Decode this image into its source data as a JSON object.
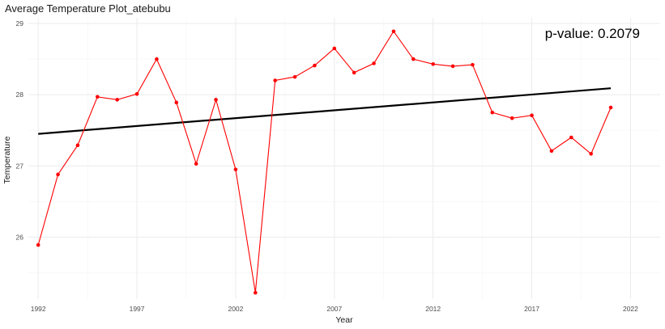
{
  "chart_data": {
    "type": "line",
    "title": "Average Temperature Plot_atebubu",
    "xlabel": "Year",
    "ylabel": "Temperature",
    "annotation": "p-value: 0.2079",
    "xlim": [
      1991.5,
      2023.5
    ],
    "ylim": [
      25.13,
      29.08
    ],
    "x_ticks": [
      1992,
      1997,
      2002,
      2007,
      2012,
      2017,
      2022
    ],
    "y_ticks": [
      26,
      27,
      28,
      29
    ],
    "grid": true,
    "legend": "none",
    "series": [
      {
        "color": "#ff0000",
        "x": [
          1992,
          1993,
          1994,
          1995,
          1996,
          1997,
          1998,
          1999,
          2000,
          2001,
          2002,
          2003,
          2004,
          2005,
          2006,
          2007,
          2008,
          2009,
          2010,
          2011,
          2012,
          2013,
          2014,
          2015,
          2016,
          2017,
          2018,
          2019,
          2020,
          2021
        ],
        "y": [
          25.89,
          26.88,
          27.29,
          27.97,
          27.93,
          28.01,
          28.5,
          27.89,
          27.03,
          27.93,
          26.95,
          25.22,
          28.2,
          28.25,
          28.41,
          28.65,
          28.31,
          28.44,
          28.89,
          28.5,
          28.43,
          28.4,
          28.42,
          27.75,
          27.67,
          27.71,
          27.21,
          27.4,
          27.17,
          27.82
        ]
      },
      {
        "type": "trend",
        "color": "#000000",
        "x": [
          1992,
          2021
        ],
        "y": [
          27.45,
          28.09
        ]
      }
    ]
  }
}
